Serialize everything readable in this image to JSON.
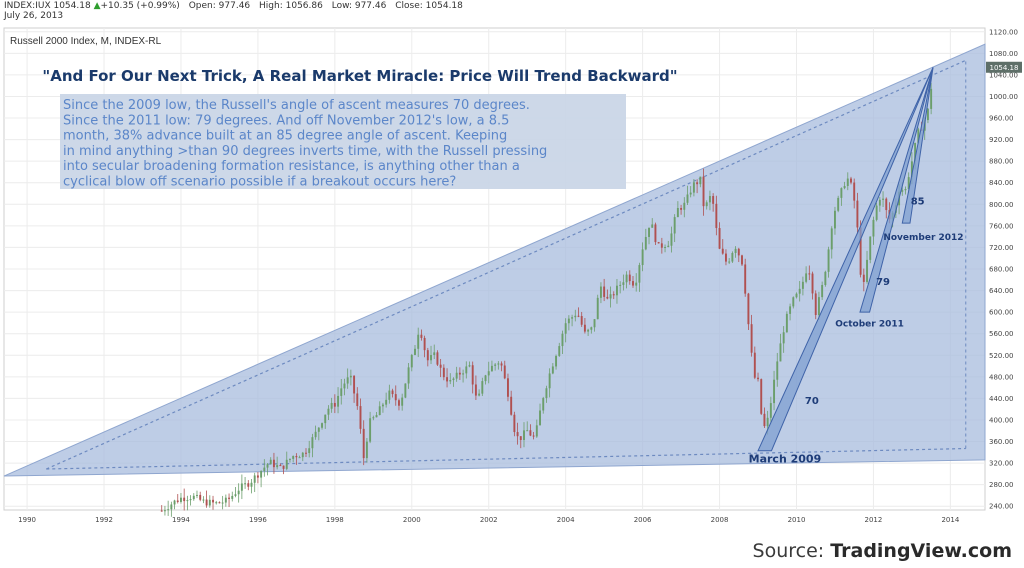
{
  "header": {
    "symbol": "INDEX:IUX",
    "last": "1054.18",
    "change": "+10.35 (+0.99%)",
    "open_label": "Open:",
    "open": "977.46",
    "high_label": "High:",
    "high": "1056.86",
    "low_label": "Low:",
    "low": "977.46",
    "close_label": "Close:",
    "close": "1054.18",
    "date": "July 26, 2013"
  },
  "source": {
    "prefix": "Source: ",
    "name": "TradingView.com"
  },
  "colors": {
    "triangle": "#a8bcde",
    "callout": "#c9d5e6",
    "callout_text": "#5b86c9",
    "title": "#1a3a6b",
    "up": "#6b9e6b",
    "down": "#b05050",
    "wedge": "#7f9fd0"
  },
  "chart_data": {
    "type": "candlestick",
    "subtitle": "Russell 2000 Index, M, INDEX-RL",
    "title": "\"And For Our Next Trick, A Real Market Miracle: Price Will Trend Backward\"",
    "note_lines": [
      "Since the 2009 low, the Russell's angle of ascent measures 70 degrees.",
      "Since the 2011 low: 79 degrees.  And off November 2012's low, a 8.5",
      "month, 38% advance built at an 85 degree angle of ascent.  Keeping",
      "in mind anything >than 90 degrees inverts time, with the Russell pressing",
      "into secular broadening formation resistance, is anything other than a",
      "cyclical blow off scenario possible if a breakout occurs here?"
    ],
    "x_ticks": [
      "1990",
      "1992",
      "1994",
      "1996",
      "1998",
      "2000",
      "2002",
      "2004",
      "2006",
      "2008",
      "2010",
      "2012",
      "2014"
    ],
    "y_ticks": [
      "1120.00",
      "1080.00",
      "1040.00",
      "1000.00",
      "960.00",
      "920.00",
      "880.00",
      "840.00",
      "800.00",
      "760.00",
      "720.00",
      "680.00",
      "640.00",
      "600.00",
      "560.00",
      "520.00",
      "480.00",
      "440.00",
      "400.00",
      "360.00",
      "320.00",
      "280.00",
      "240.00"
    ],
    "last_price_label": "1054.18",
    "xlim": [
      1989.4,
      2014.9
    ],
    "ylim": [
      233,
      1127
    ],
    "price_path": [
      [
        1993.5,
        232
      ],
      [
        1993.8,
        247
      ],
      [
        1994.0,
        255
      ],
      [
        1994.3,
        258
      ],
      [
        1994.6,
        248
      ],
      [
        1994.9,
        245
      ],
      [
        1995.2,
        250
      ],
      [
        1995.5,
        272
      ],
      [
        1995.8,
        285
      ],
      [
        1996.0,
        300
      ],
      [
        1996.3,
        322
      ],
      [
        1996.6,
        310
      ],
      [
        1996.9,
        333
      ],
      [
        1997.2,
        338
      ],
      [
        1997.5,
        375
      ],
      [
        1997.8,
        420
      ],
      [
        1998.0,
        430
      ],
      [
        1998.2,
        465
      ],
      [
        1998.4,
        480
      ],
      [
        1998.6,
        420
      ],
      [
        1998.75,
        330
      ],
      [
        1998.9,
        395
      ],
      [
        1999.1,
        410
      ],
      [
        1999.4,
        450
      ],
      [
        1999.7,
        430
      ],
      [
        1999.9,
        490
      ],
      [
        2000.1,
        540
      ],
      [
        2000.2,
        575
      ],
      [
        2000.4,
        510
      ],
      [
        2000.6,
        520
      ],
      [
        2000.8,
        485
      ],
      [
        2001.0,
        470
      ],
      [
        2001.3,
        490
      ],
      [
        2001.5,
        500
      ],
      [
        2001.7,
        430
      ],
      [
        2001.9,
        485
      ],
      [
        2002.1,
        500
      ],
      [
        2002.3,
        510
      ],
      [
        2002.5,
        450
      ],
      [
        2002.7,
        370
      ],
      [
        2002.8,
        365
      ],
      [
        2003.0,
        380
      ],
      [
        2003.2,
        365
      ],
      [
        2003.4,
        440
      ],
      [
        2003.6,
        490
      ],
      [
        2003.8,
        535
      ],
      [
        2004.0,
        580
      ],
      [
        2004.3,
        600
      ],
      [
        2004.5,
        560
      ],
      [
        2004.7,
        570
      ],
      [
        2004.9,
        650
      ],
      [
        2005.1,
        620
      ],
      [
        2005.3,
        640
      ],
      [
        2005.6,
        670
      ],
      [
        2005.8,
        650
      ],
      [
        2006.0,
        720
      ],
      [
        2006.2,
        770
      ],
      [
        2006.4,
        720
      ],
      [
        2006.7,
        730
      ],
      [
        2006.9,
        790
      ],
      [
        2007.1,
        800
      ],
      [
        2007.3,
        835
      ],
      [
        2007.5,
        845
      ],
      [
        2007.6,
        790
      ],
      [
        2007.8,
        820
      ],
      [
        2007.9,
        760
      ],
      [
        2008.0,
        715
      ],
      [
        2008.2,
        690
      ],
      [
        2008.4,
        725
      ],
      [
        2008.6,
        690
      ],
      [
        2008.8,
        540
      ],
      [
        2008.9,
        480
      ],
      [
        2009.0,
        470
      ],
      [
        2009.1,
        400
      ],
      [
        2009.2,
        380
      ],
      [
        2009.35,
        440
      ],
      [
        2009.5,
        510
      ],
      [
        2009.7,
        580
      ],
      [
        2009.9,
        620
      ],
      [
        2010.1,
        640
      ],
      [
        2010.3,
        690
      ],
      [
        2010.4,
        650
      ],
      [
        2010.5,
        600
      ],
      [
        2010.65,
        640
      ],
      [
        2010.8,
        700
      ],
      [
        2010.95,
        780
      ],
      [
        2011.1,
        810
      ],
      [
        2011.3,
        850
      ],
      [
        2011.4,
        840
      ],
      [
        2011.55,
        790
      ],
      [
        2011.65,
        680
      ],
      [
        2011.75,
        650
      ],
      [
        2011.9,
        730
      ],
      [
        2012.05,
        790
      ],
      [
        2012.2,
        820
      ],
      [
        2012.4,
        770
      ],
      [
        2012.55,
        790
      ],
      [
        2012.7,
        840
      ],
      [
        2012.8,
        815
      ],
      [
        2012.9,
        850
      ],
      [
        2013.0,
        880
      ],
      [
        2013.15,
        930
      ],
      [
        2013.3,
        950
      ],
      [
        2013.45,
        980
      ],
      [
        2013.55,
        1054
      ]
    ],
    "broadening_formation": {
      "apex": [
        2013.55,
        1054
      ],
      "upper_start": [
        1989.4,
        300
      ],
      "lower_start": [
        1989.4,
        300
      ]
    },
    "angles": [
      {
        "label": "70",
        "from_label": "March 2009",
        "from": [
          2009.2,
          343
        ],
        "to": [
          2013.55,
          1054
        ]
      },
      {
        "label": "79",
        "from_label": "October 2011",
        "from": [
          2011.75,
          600
        ],
        "to": [
          2013.55,
          1054
        ]
      },
      {
        "label": "85",
        "from_label": "November 2012",
        "from": [
          2012.85,
          760
        ],
        "to": [
          2013.55,
          1054
        ]
      }
    ]
  }
}
